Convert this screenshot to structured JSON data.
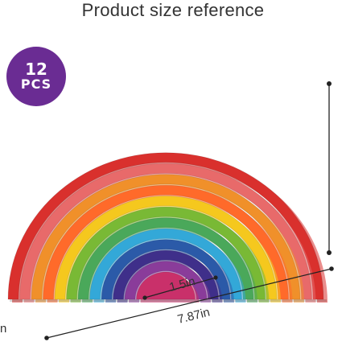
{
  "heading": "Product size reference",
  "badge": {
    "count": "12",
    "unit": "PCS",
    "color": "#6a2c93"
  },
  "rainbow": {
    "piece_count": 12,
    "colors": [
      "#d9302d",
      "#e86a6a",
      "#f0902a",
      "#ff6a2a",
      "#f5c81e",
      "#79b935",
      "#4aa85a",
      "#33a8d8",
      "#2b5aa8",
      "#3f2f8a",
      "#8a3c9a",
      "#c9306a"
    ]
  },
  "dimensions": {
    "inner_width": "1.5in",
    "total_width": "7.87in",
    "left_partial": "n"
  }
}
